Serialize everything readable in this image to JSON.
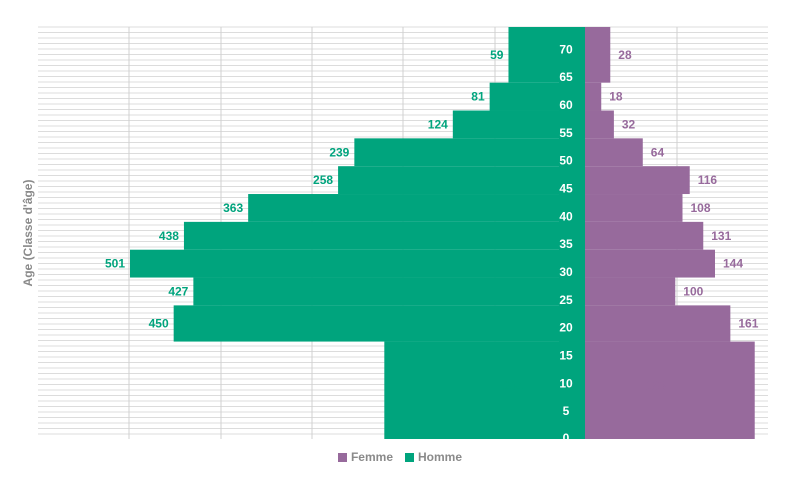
{
  "chart_data": {
    "type": "bar",
    "subtype": "population-pyramid",
    "ylabel": "Age   (Classe d'âge)",
    "age_ticks": [
      "0",
      "5",
      "10",
      "15",
      "20",
      "25",
      "30",
      "35",
      "40",
      "45",
      "50",
      "55",
      "60",
      "65",
      "70"
    ],
    "age_bands": [
      {
        "from": 0,
        "to": 17.5,
        "homme": 204,
        "femme": 188
      },
      {
        "from": 17.5,
        "to": 24,
        "homme": 450,
        "femme": 161
      },
      {
        "from": 24,
        "to": 29,
        "homme": 427,
        "femme": 100
      },
      {
        "from": 29,
        "to": 34,
        "homme": 501,
        "femme": 144
      },
      {
        "from": 34,
        "to": 39,
        "homme": 438,
        "femme": 131
      },
      {
        "from": 39,
        "to": 44,
        "homme": 363,
        "femme": 108
      },
      {
        "from": 44,
        "to": 49,
        "homme": 258,
        "femme": 116
      },
      {
        "from": 49,
        "to": 54,
        "homme": 239,
        "femme": 64
      },
      {
        "from": 54,
        "to": 59,
        "homme": 124,
        "femme": 32
      },
      {
        "from": 59,
        "to": 64,
        "homme": 81,
        "femme": 18
      },
      {
        "from": 64,
        "to": 74,
        "homme": 59,
        "femme": 28
      }
    ],
    "series": [
      {
        "name": "Femme",
        "color": "#976a9c"
      },
      {
        "name": "Homme",
        "color": "#00a47d"
      }
    ],
    "xlim_homme": [
      0,
      550
    ],
    "xlim_femme": [
      0,
      200
    ],
    "ylim": [
      0,
      74
    ],
    "grid": true,
    "legend_position": "bottom"
  }
}
